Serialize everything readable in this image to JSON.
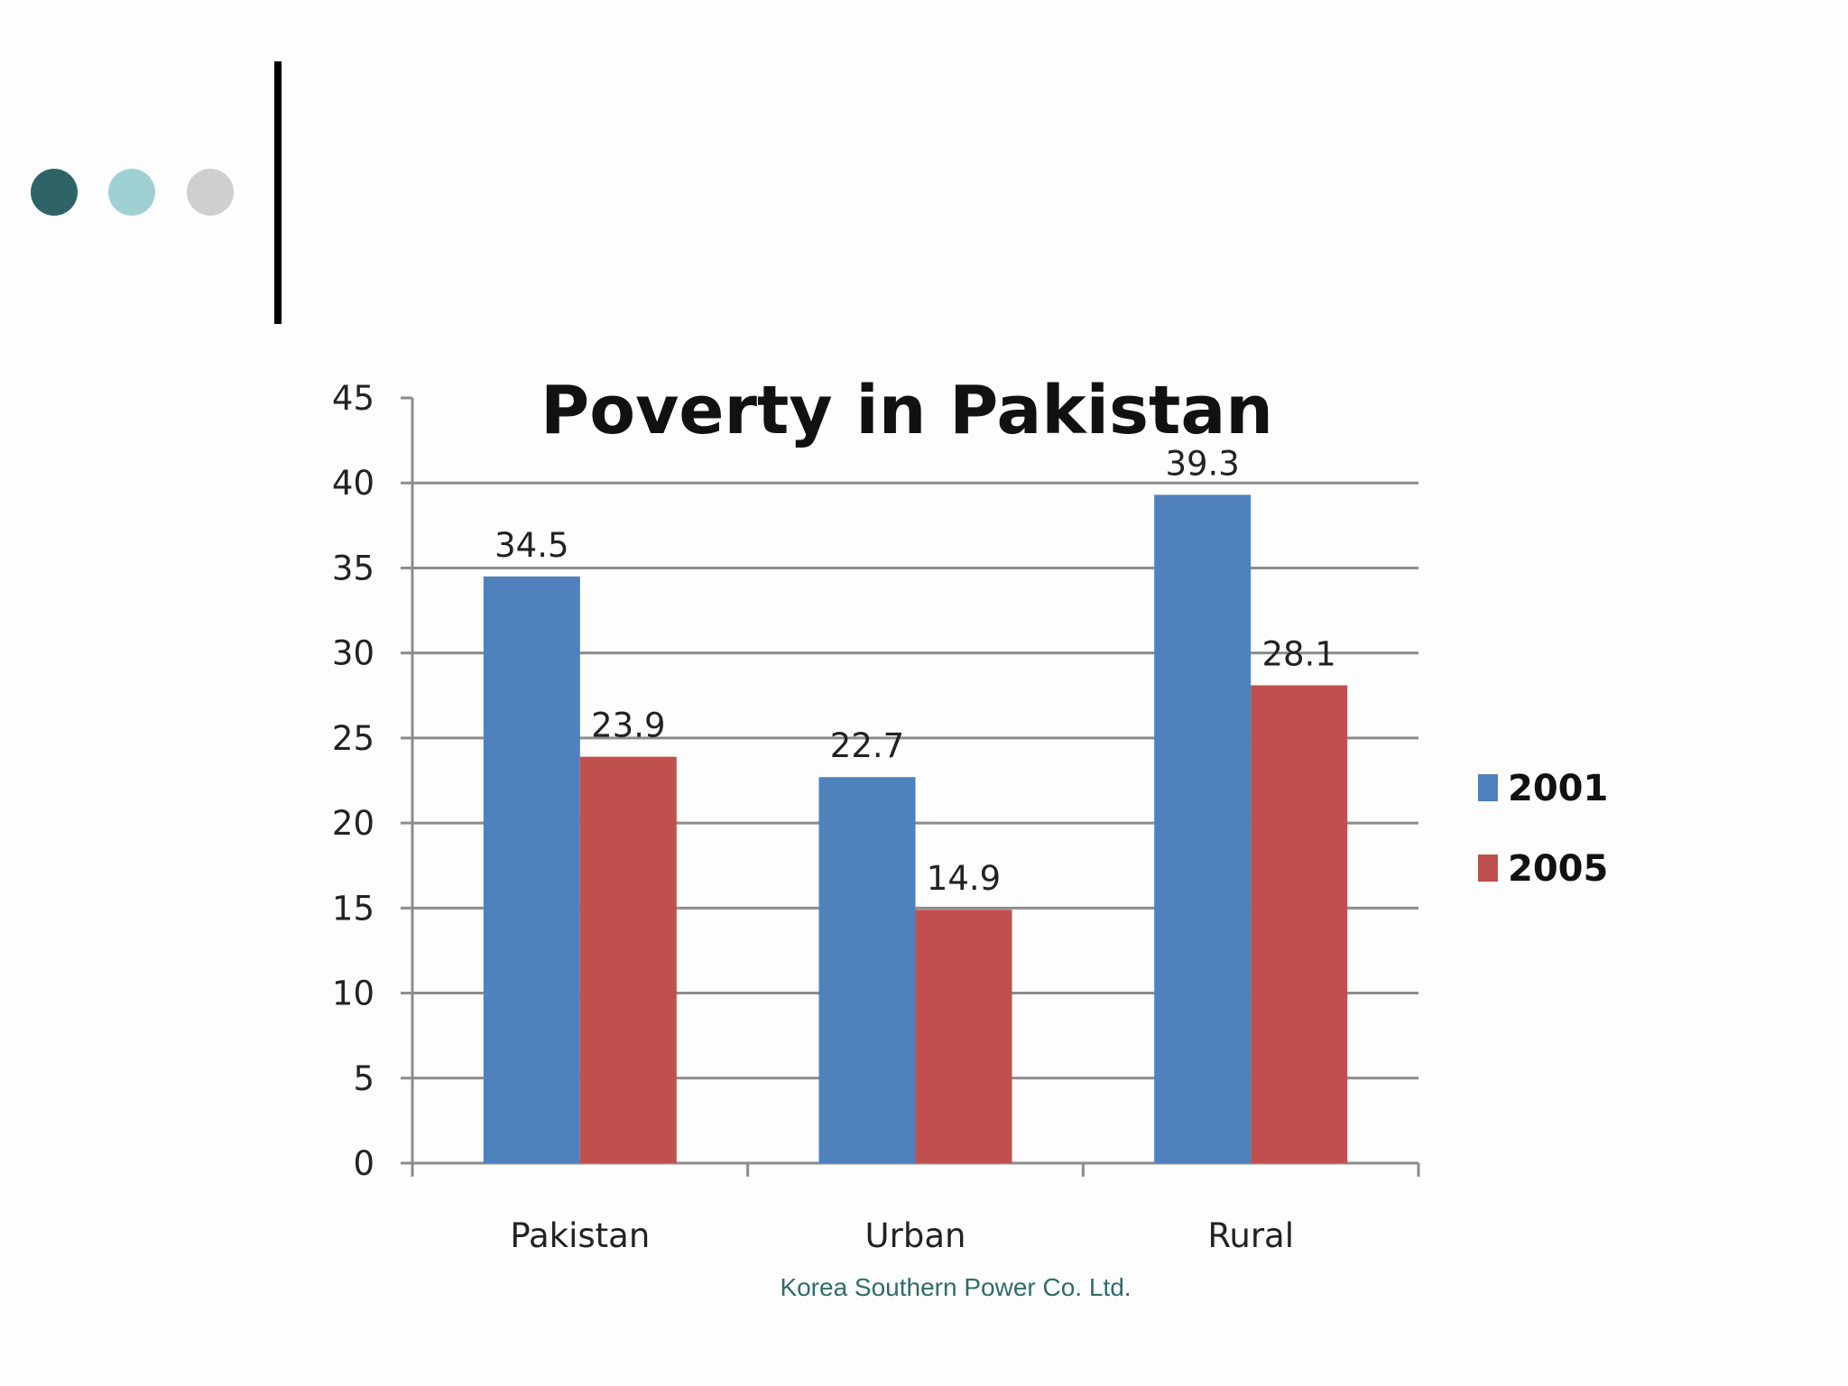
{
  "slide": {
    "footer": "Korea Southern Power Co. Ltd.",
    "decor_dot_colors": [
      "#2e6466",
      "#9fd1d3",
      "#cfcfcf"
    ]
  },
  "chart_data": {
    "type": "bar",
    "title": "Poverty in Pakistan",
    "categories": [
      "Pakistan",
      "Urban",
      "Rural"
    ],
    "series": [
      {
        "name": "2001",
        "values": [
          34.5,
          22.7,
          39.3
        ],
        "color": "#4f81bd"
      },
      {
        "name": "2005",
        "values": [
          23.9,
          14.9,
          28.1
        ],
        "color": "#c0504d"
      }
    ],
    "ylim": [
      0,
      45
    ],
    "yticks": [
      0,
      5,
      10,
      15,
      20,
      25,
      30,
      35,
      40,
      45
    ],
    "data_labels": true,
    "grid": true,
    "legend_position": "right"
  }
}
